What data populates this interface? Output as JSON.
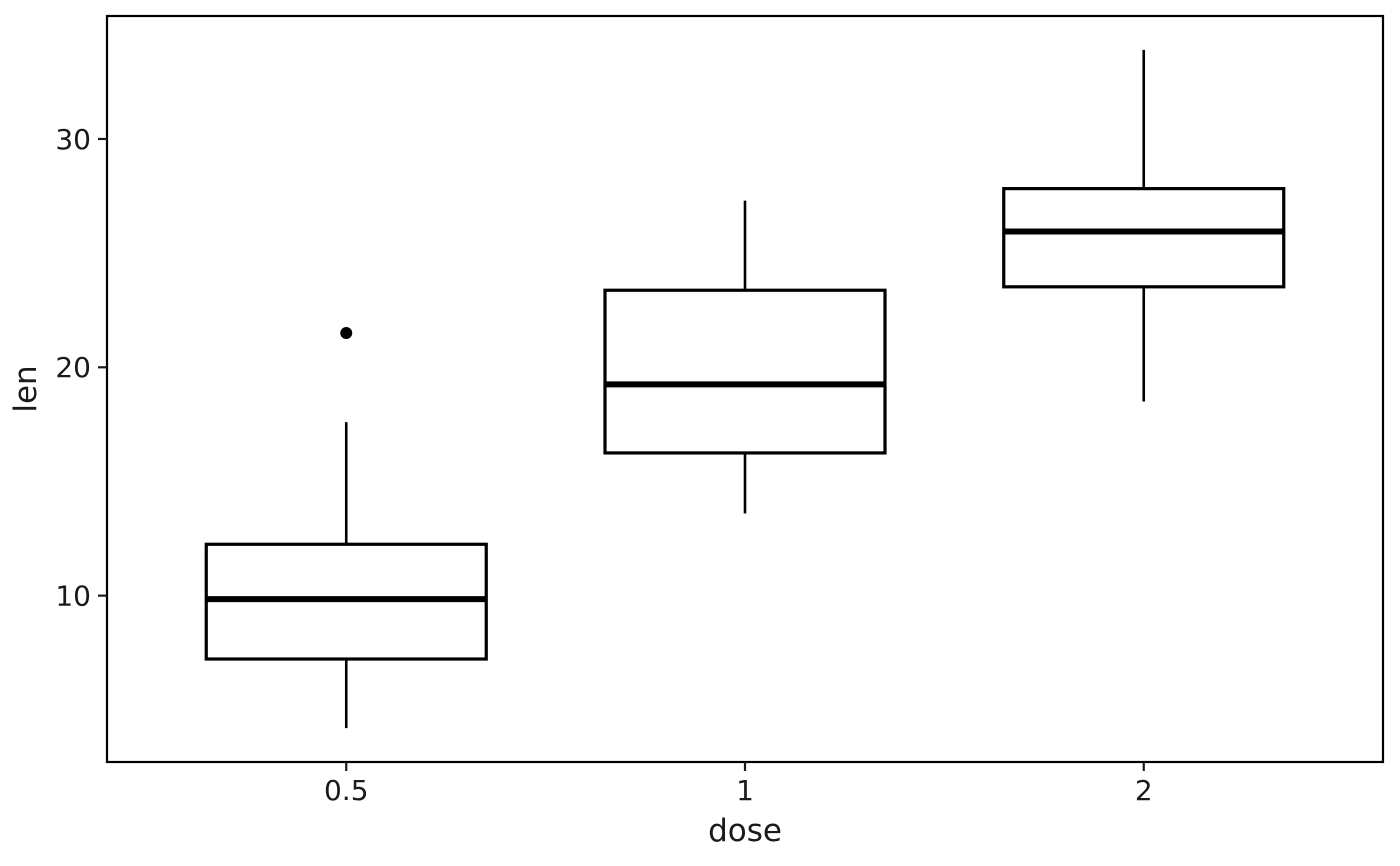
{
  "figure": {
    "background": "#ffffff"
  },
  "chart_data": {
    "type": "boxplot",
    "title": "",
    "xlabel": "dose",
    "ylabel": "len",
    "categories": [
      "0.5",
      "1",
      "2"
    ],
    "x_positions": [
      1,
      2,
      3
    ],
    "x_range": [
      0.4,
      3.6
    ],
    "ylim": [
      2.715,
      35.385
    ],
    "y_ticks": [
      10,
      20,
      30
    ],
    "y_tick_labels": [
      "10",
      "20",
      "30"
    ],
    "grid": false,
    "legend": false,
    "orientation": "vertical",
    "series": [
      {
        "category": "0.5",
        "whisker_low": 4.2,
        "q1": 7.225,
        "median": 9.85,
        "q3": 12.25,
        "whisker_high": 17.6,
        "outliers": [
          21.5
        ]
      },
      {
        "category": "1",
        "whisker_low": 13.6,
        "q1": 16.25,
        "median": 19.25,
        "q3": 23.375,
        "whisker_high": 27.3,
        "outliers": []
      },
      {
        "category": "2",
        "whisker_low": 18.5,
        "q1": 23.525,
        "median": 25.95,
        "q3": 27.825,
        "whisker_high": 33.9,
        "outliers": []
      }
    ],
    "colors": {
      "panel_border": "#000000",
      "box_stroke": "#000000",
      "box_fill": "#ffffff",
      "median": "#000000",
      "whisker": "#000000",
      "outlier": "#000000",
      "tick": "#1a1a1a",
      "text": "#1a1a1a",
      "background": "#ffffff"
    }
  }
}
